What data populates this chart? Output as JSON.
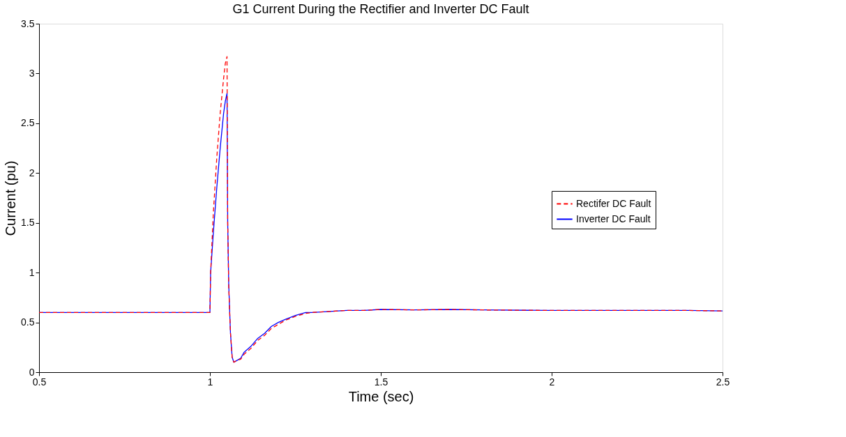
{
  "chart_data": {
    "type": "line",
    "title": "G1 Current During the Rectifier and Inverter DC Fault",
    "xlabel": "Time (sec)",
    "ylabel": "Current (pu)",
    "xlim": [
      0.5,
      2.5
    ],
    "xticks": [
      0.5,
      1,
      1.5,
      2,
      2.5
    ],
    "ylim": [
      0,
      3.5
    ],
    "yticks": [
      0,
      0.5,
      1,
      1.5,
      2,
      2.5,
      3,
      3.5
    ],
    "grid": false,
    "legend": "right",
    "series": [
      {
        "name": "Rectifer DC Fault",
        "color": "#ff0000",
        "line_style": "dashed",
        "x": [
          0.5,
          1.0,
          1.002,
          1.01,
          1.02,
          1.03,
          1.04,
          1.045,
          1.05,
          1.052,
          1.055,
          1.06,
          1.065,
          1.07,
          1.08,
          1.09,
          1.1,
          1.12,
          1.14,
          1.16,
          1.18,
          1.2,
          1.22,
          1.25,
          1.28,
          1.3,
          1.35,
          1.4,
          1.45,
          1.5,
          1.6,
          1.7,
          1.8,
          2.0,
          2.2,
          2.4,
          2.5
        ],
        "values": [
          0.6,
          0.6,
          1.0,
          1.6,
          2.15,
          2.6,
          2.95,
          3.1,
          3.17,
          1.5,
          0.86,
          0.4,
          0.15,
          0.1,
          0.12,
          0.13,
          0.18,
          0.24,
          0.32,
          0.37,
          0.44,
          0.48,
          0.52,
          0.56,
          0.59,
          0.6,
          0.61,
          0.62,
          0.62,
          0.63,
          0.625,
          0.63,
          0.625,
          0.62,
          0.62,
          0.62,
          0.615
        ]
      },
      {
        "name": "Inverter DC Fault",
        "color": "#0000ff",
        "line_style": "solid",
        "x": [
          0.5,
          1.0,
          1.002,
          1.01,
          1.02,
          1.03,
          1.04,
          1.045,
          1.05,
          1.052,
          1.055,
          1.06,
          1.065,
          1.07,
          1.08,
          1.09,
          1.1,
          1.12,
          1.14,
          1.16,
          1.18,
          1.2,
          1.22,
          1.25,
          1.28,
          1.3,
          1.35,
          1.4,
          1.45,
          1.5,
          1.6,
          1.7,
          1.8,
          2.0,
          2.2,
          2.4,
          2.5
        ],
        "values": [
          0.6,
          0.6,
          1.0,
          1.4,
          1.85,
          2.25,
          2.6,
          2.72,
          2.8,
          1.5,
          0.88,
          0.4,
          0.15,
          0.1,
          0.12,
          0.14,
          0.2,
          0.26,
          0.34,
          0.39,
          0.46,
          0.5,
          0.53,
          0.57,
          0.6,
          0.6,
          0.61,
          0.62,
          0.62,
          0.63,
          0.625,
          0.63,
          0.625,
          0.62,
          0.62,
          0.62,
          0.615
        ]
      }
    ]
  }
}
